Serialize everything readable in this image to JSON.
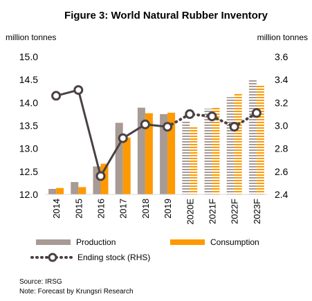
{
  "chart_data": {
    "type": "bar",
    "title": "Figure 3: World Natural Rubber Inventory",
    "y_left_unit": "million tonnes",
    "y_right_unit": "million tonnes",
    "categories": [
      "2014",
      "2015",
      "2016",
      "2017",
      "2018",
      "2019",
      "2020E",
      "2021F",
      "2022F",
      "2023F"
    ],
    "forecast_categories": [
      "2020E",
      "2021F",
      "2022F",
      "2023F"
    ],
    "y_left": {
      "min": 12.0,
      "max": 15.0,
      "ticks": [
        "12.0",
        "12.5",
        "13.0",
        "13.5",
        "14.0",
        "14.5",
        "15.0"
      ]
    },
    "y_right": {
      "min": 2.4,
      "max": 3.6,
      "ticks": [
        "2.4",
        "2.6",
        "2.8",
        "3.0",
        "3.2",
        "3.4",
        "3.6"
      ]
    },
    "series": [
      {
        "name": "Production",
        "axis": "left",
        "kind": "bar",
        "color": "#a89a94",
        "values": [
          12.12,
          12.27,
          12.61,
          13.56,
          13.89,
          13.75,
          13.61,
          13.87,
          14.12,
          14.51
        ]
      },
      {
        "name": "Consumption",
        "axis": "left",
        "kind": "bar",
        "color": "#ff9900",
        "values": [
          12.14,
          12.16,
          12.67,
          13.24,
          13.77,
          13.78,
          13.49,
          13.9,
          14.2,
          14.39
        ]
      },
      {
        "name": "Ending stock (RHS)",
        "axis": "right",
        "kind": "line",
        "color": "#4a4042",
        "values": [
          3.26,
          3.31,
          2.56,
          2.89,
          3.01,
          2.99,
          3.1,
          3.08,
          2.99,
          3.11
        ]
      }
    ],
    "legend_position": "bottom",
    "grid": false
  },
  "notes": {
    "source": "Source:  IRSG",
    "note": "Note: Forecast by Krungsri Research"
  }
}
